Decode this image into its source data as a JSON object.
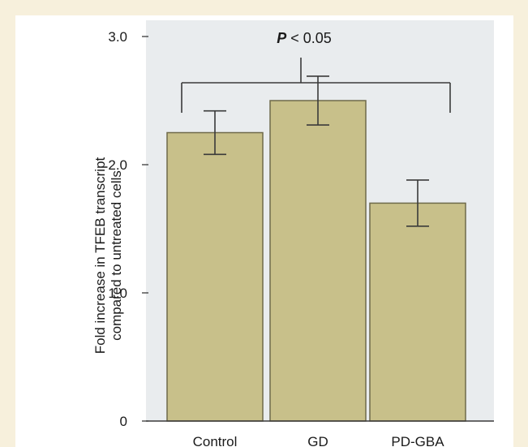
{
  "chart_data": {
    "type": "bar",
    "categories": [
      "Control",
      "GD",
      "PD-GBA"
    ],
    "values": [
      2.25,
      2.5,
      1.7
    ],
    "error": [
      0.17,
      0.19,
      0.18
    ],
    "ylabel_lines": [
      "Fold increase in TFEB transcript",
      "compared to untreated cells"
    ],
    "yticks": [
      0,
      1.0,
      2.0,
      3.0
    ],
    "ytick_labels": [
      "0",
      "1.0",
      "2.0",
      "3.0"
    ],
    "ylim": [
      0,
      3.1
    ],
    "annotation": {
      "italic": "P",
      "rest": " < 0.05"
    },
    "bar_color": "#c8c08a",
    "bar_edge": "#6f6a4a",
    "plot_bg": "#e9ecee",
    "grid": false
  }
}
